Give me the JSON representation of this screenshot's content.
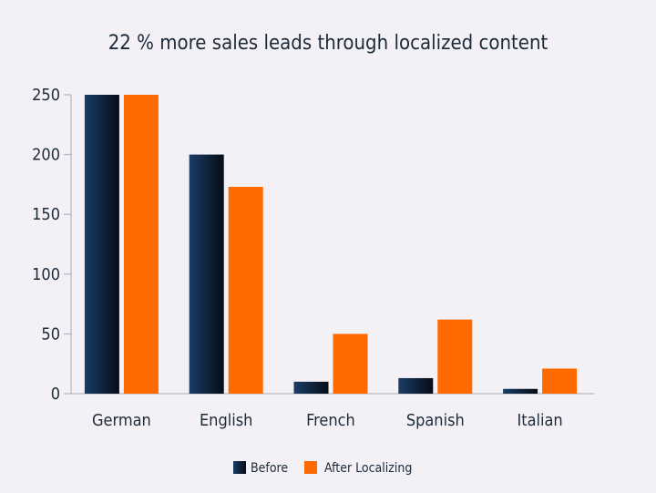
{
  "chart_data": {
    "type": "bar",
    "title": "22 % more sales leads through localized content",
    "xlabel": "",
    "ylabel": "",
    "categories": [
      "German",
      "English",
      "French",
      "Spanish",
      "Italian"
    ],
    "series": [
      {
        "name": "Before",
        "values": [
          250,
          200,
          10,
          13,
          4
        ],
        "color": "#0f2a4a"
      },
      {
        "name": "After Localizing",
        "values": [
          250,
          173,
          50,
          62,
          21
        ],
        "color": "#ff6a00"
      }
    ],
    "ylim": [
      0,
      250
    ],
    "yticks": [
      0,
      50,
      100,
      150,
      200,
      250
    ],
    "grid": false,
    "legend_position": "bottom-center"
  }
}
